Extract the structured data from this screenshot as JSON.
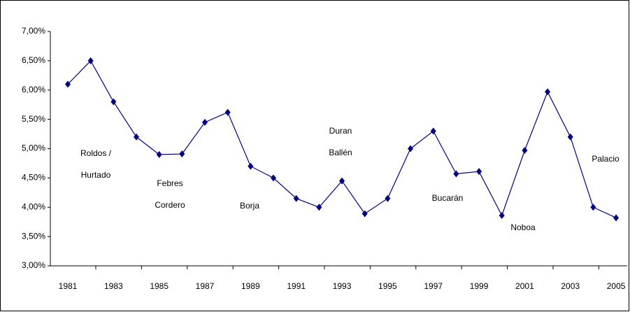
{
  "chart_data": {
    "type": "line",
    "categories": [
      "1981",
      null,
      "1983",
      null,
      "1985",
      null,
      "1987",
      null,
      "1989",
      null,
      "1991",
      null,
      "1993",
      null,
      "1995",
      null,
      "1997",
      null,
      "1999",
      null,
      "2001",
      null,
      "2003",
      null,
      "2005"
    ],
    "series": [
      {
        "color": "#000080",
        "values": [
          6.1,
          6.5,
          5.8,
          5.2,
          4.9,
          4.91,
          5.45,
          5.62,
          4.7,
          4.5,
          4.15,
          4.0,
          4.45,
          3.89,
          4.15,
          5.0,
          5.3,
          4.57,
          4.61,
          3.86,
          4.97,
          5.97,
          5.2,
          4.0,
          3.82
        ]
      }
    ],
    "ylim": [
      3,
      7
    ],
    "yticks": [
      {
        "value": 3,
        "label": "3,00%"
      },
      {
        "value": 3.5,
        "label": "3,50%"
      },
      {
        "value": 4,
        "label": "4,00%"
      },
      {
        "value": 4.5,
        "label": "4,50%"
      },
      {
        "value": 5,
        "label": "5,00%"
      },
      {
        "value": 5.5,
        "label": "5,50%"
      },
      {
        "value": 6,
        "label": "6,00%"
      },
      {
        "value": 6.5,
        "label": "6,50%"
      },
      {
        "value": 7,
        "label": "7,00%"
      }
    ],
    "annotations": [
      [
        "Roldos /",
        "Hurtado"
      ],
      [
        "Febres",
        "Cordero"
      ],
      [
        "Borja"
      ],
      [
        "Duran",
        "Ballén"
      ],
      [
        "Bucarán"
      ],
      [
        "Noboa"
      ],
      [
        "Palacio"
      ]
    ]
  }
}
